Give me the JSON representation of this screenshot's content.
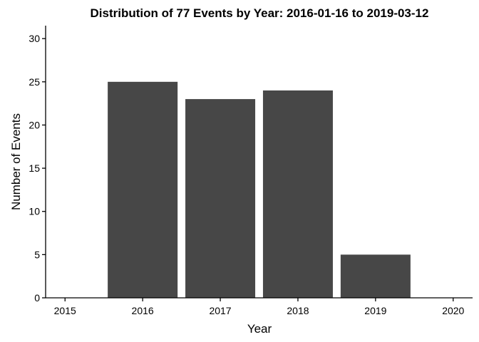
{
  "chart_data": {
    "type": "bar",
    "title": "Distribution of 77 Events by Year: 2016-01-16 to 2019-03-12",
    "xlabel": "Year",
    "ylabel": "Number of Events",
    "categories": [
      "2016",
      "2017",
      "2018",
      "2019"
    ],
    "values": [
      25,
      23,
      24,
      5
    ],
    "xlim": [
      2014.75,
      2020.25
    ],
    "ylim": [
      0,
      31.5
    ],
    "x_ticks": [
      2015,
      2016,
      2017,
      2018,
      2019,
      2020
    ],
    "y_ticks": [
      0,
      5,
      10,
      15,
      20,
      25,
      30
    ],
    "bar_color": "#474747",
    "grid": false,
    "legend": "none"
  }
}
